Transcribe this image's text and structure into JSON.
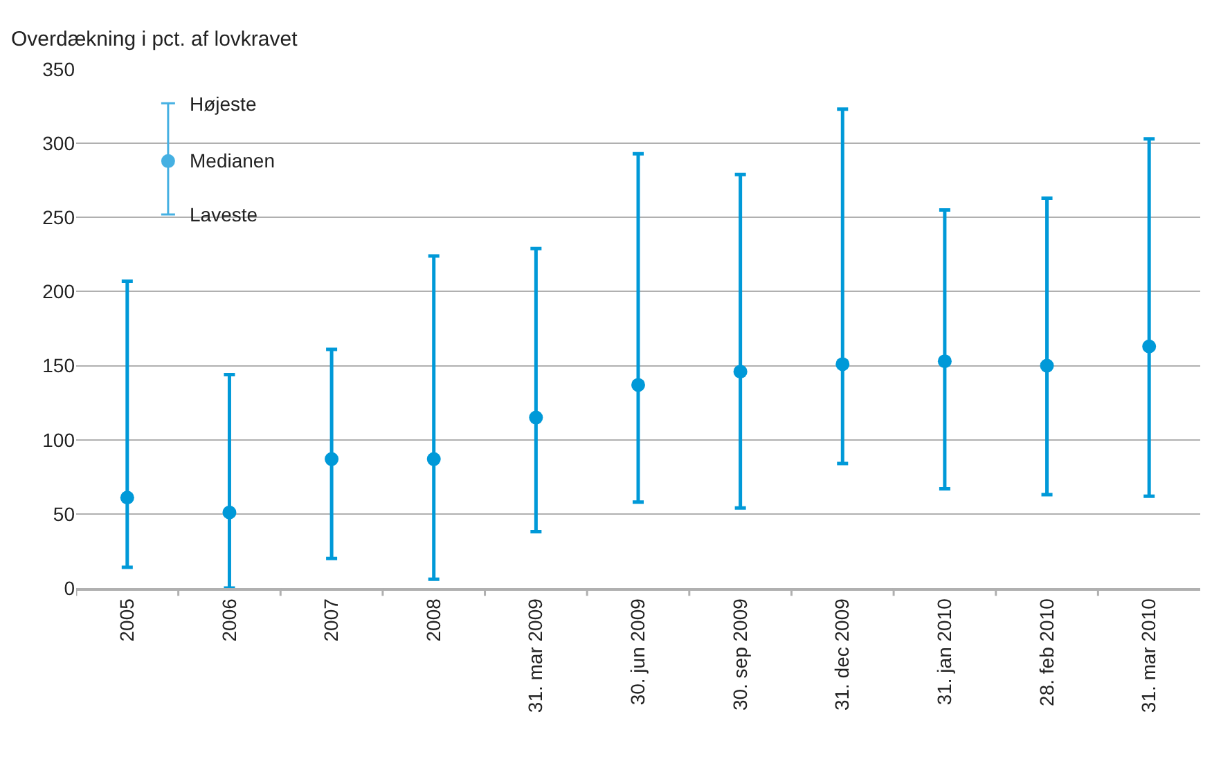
{
  "chart_data": {
    "type": "scatter",
    "ylabel": "Overdækning i pct. af lovkravet",
    "categories": [
      "2005",
      "2006",
      "2007",
      "2008",
      "31. mar 2009",
      "30. jun 2009",
      "30. sep 2009",
      "31. dec 2009",
      "31. jan 2010",
      "28. feb 2010",
      "31. mar 2010"
    ],
    "series": [
      {
        "color": "#0099d8",
        "values": [
          61,
          51,
          87,
          87,
          115,
          137,
          146,
          151,
          153,
          150,
          163
        ],
        "errors": [
          [
            14,
            207
          ],
          [
            0,
            144
          ],
          [
            20,
            161
          ],
          [
            6,
            224
          ],
          [
            38,
            229
          ],
          [
            58,
            293
          ],
          [
            54,
            279
          ],
          [
            84,
            323
          ],
          [
            67,
            255
          ],
          [
            63,
            263
          ],
          [
            62,
            303
          ]
        ]
      }
    ],
    "annotations": [
      "Højeste",
      "Medianen",
      "Laveste"
    ],
    "ylim": [
      0,
      350
    ],
    "yticks": [
      0,
      50,
      100,
      150,
      200,
      250,
      300,
      350
    ],
    "grid": "y",
    "marker": "circle"
  }
}
